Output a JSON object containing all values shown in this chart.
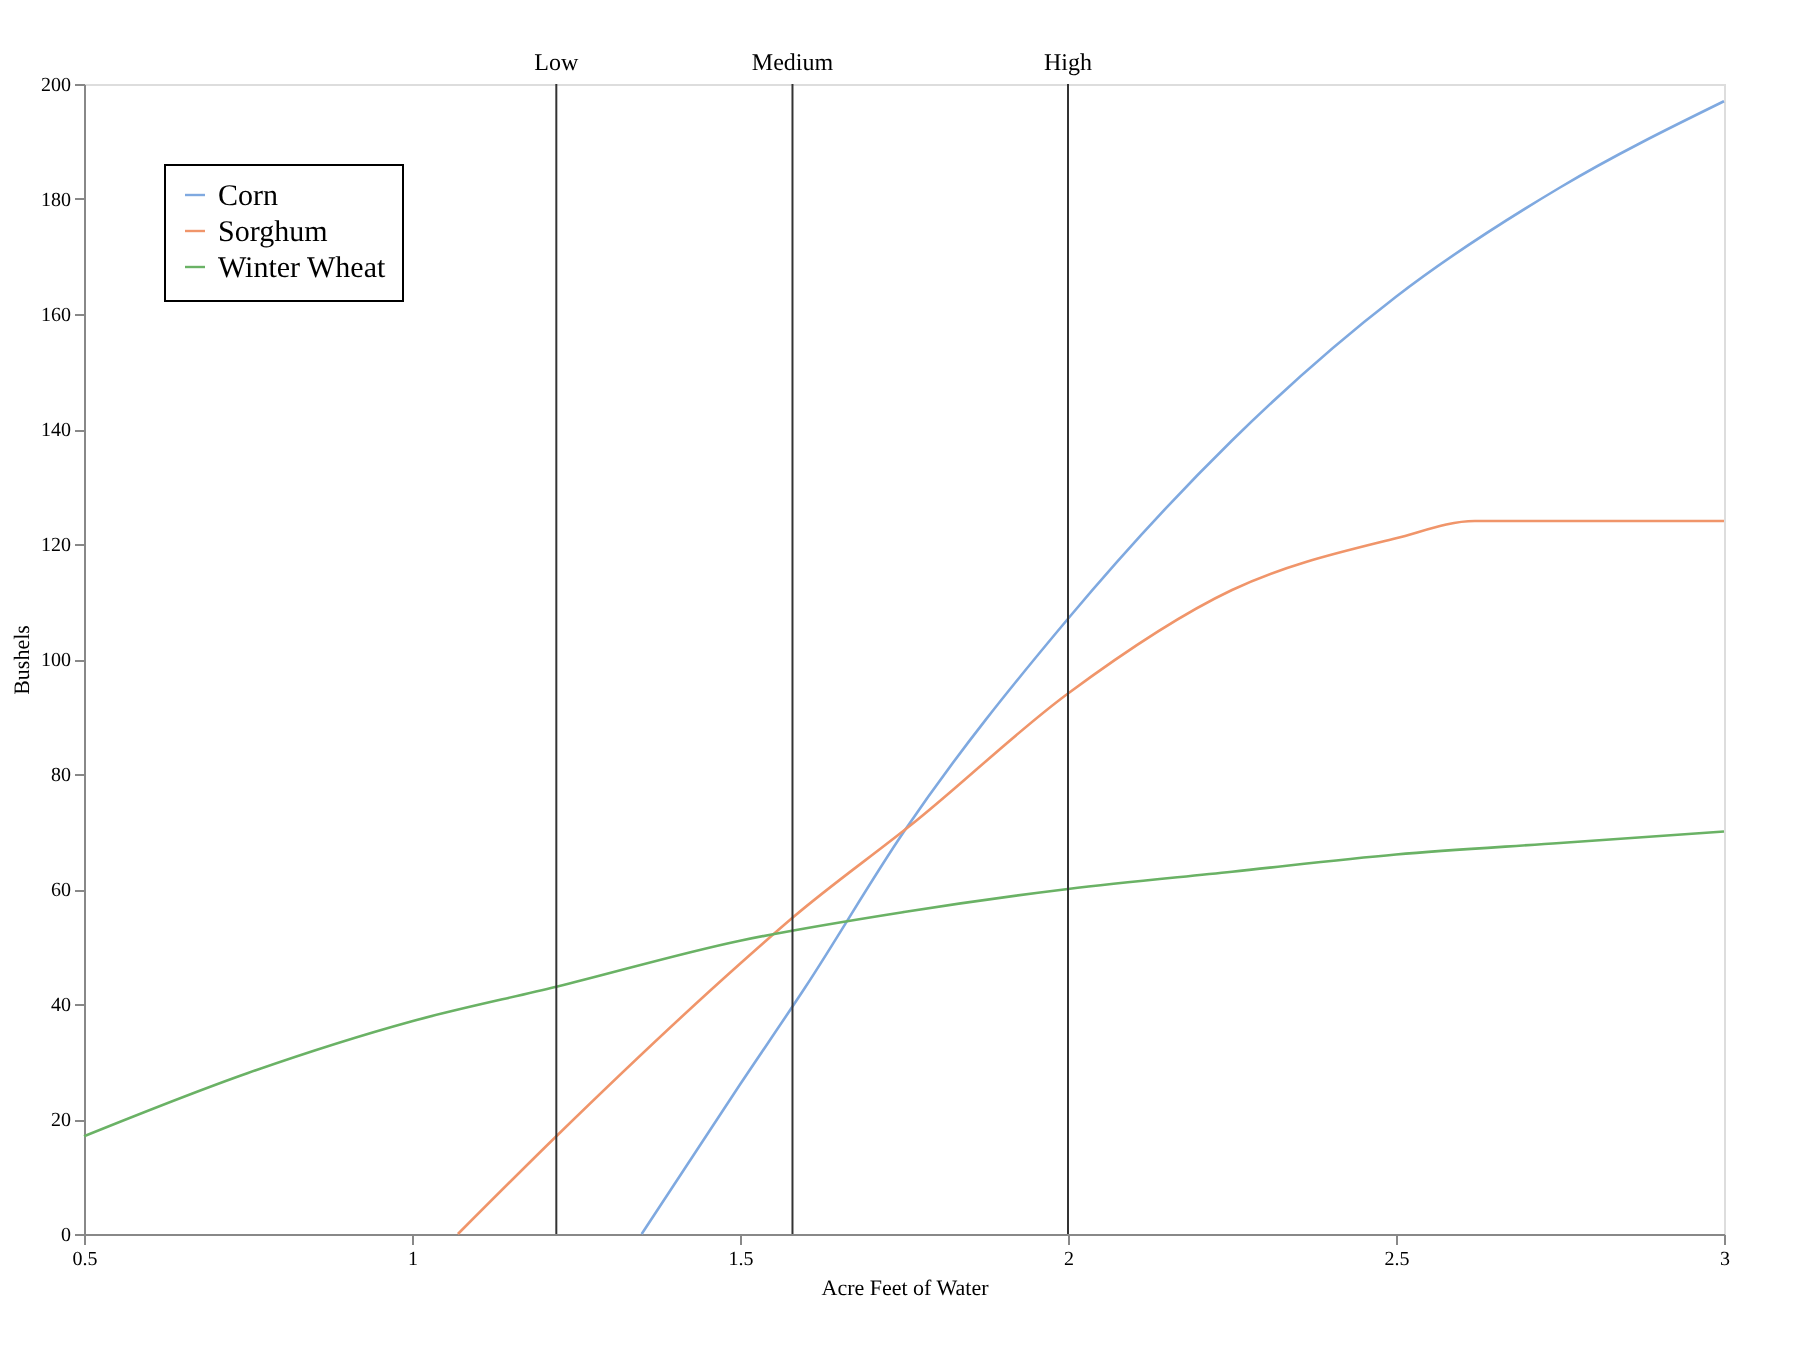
{
  "chart_data": {
    "type": "line",
    "xlabel": "Acre Feet of Water",
    "ylabel": "Bushels",
    "xlim": [
      0.5,
      3
    ],
    "ylim": [
      0,
      200
    ],
    "xticks": [
      0.5,
      1,
      1.5,
      2,
      2.5,
      3
    ],
    "yticks": [
      0,
      20,
      40,
      60,
      80,
      100,
      120,
      140,
      160,
      180,
      200
    ],
    "grid": false,
    "legend": "top left",
    "line_style": "solid",
    "marker": "none",
    "series": [
      {
        "name": "Corn",
        "color": "#7fa9e0",
        "x": [
          1.35,
          1.5,
          1.6,
          1.75,
          2,
          2.25,
          2.5,
          2.75,
          3
        ],
        "values": [
          0,
          26,
          43,
          70,
          107,
          138,
          163,
          182,
          197
        ]
      },
      {
        "name": "Sorghum",
        "color": "#f0956a",
        "x": [
          1.07,
          1.22,
          1.5,
          1.58,
          1.77,
          2,
          2.25,
          2.5,
          2.62,
          3
        ],
        "values": [
          0,
          17,
          47,
          55,
          72,
          94,
          112,
          121,
          124,
          124
        ]
      },
      {
        "name": "Winter Wheat",
        "color": "#6ab265",
        "x": [
          0.5,
          0.75,
          1,
          1.22,
          1.5,
          1.75,
          2,
          2.25,
          2.5,
          2.75,
          3
        ],
        "values": [
          17,
          28,
          37,
          43,
          51,
          56,
          60,
          63,
          66,
          68,
          70
        ]
      }
    ],
    "ref_lines": [
      {
        "axis": "x",
        "value": 1.22,
        "label": "Low",
        "color": "#333333"
      },
      {
        "axis": "x",
        "value": 1.58,
        "label": "Medium",
        "color": "#333333"
      },
      {
        "axis": "x",
        "value": 2,
        "label": "High",
        "color": "#333333"
      }
    ]
  }
}
